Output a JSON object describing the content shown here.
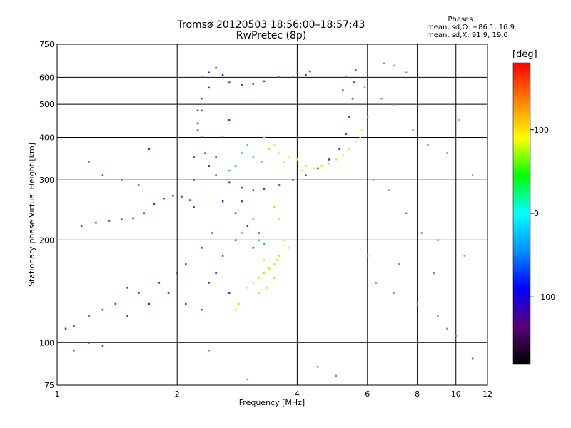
{
  "chart_data": {
    "type": "scatter",
    "title": "Tromsø 20120503 18:56:00–18:57:43",
    "subtitle": "RwPretec (8p)",
    "xlabel": "Frequency [MHz]",
    "ylabel": "Stationary phase Virtual Height [km]",
    "x_scale": "log",
    "y_scale": "log",
    "xlim": [
      1,
      12
    ],
    "ylim": [
      75,
      750
    ],
    "x_ticks": [
      1,
      2,
      4,
      6,
      8,
      10,
      12
    ],
    "y_ticks": [
      75,
      100,
      200,
      300,
      400,
      500,
      600,
      750
    ],
    "grid": true,
    "legend": {
      "header": "Phases",
      "lines": [
        "mean, sd,O: −86.1, 16.9",
        "mean, sd,X:  91.9, 19.0"
      ]
    },
    "colorbar": {
      "label": "[deg]",
      "ticks": [
        100,
        0,
        -100
      ],
      "range": [
        -180,
        180
      ],
      "colors": [
        "#000000",
        "#5a0078",
        "#0000ff",
        "#0090ff",
        "#00ffff",
        "#00ff00",
        "#ffff00",
        "#ff8000",
        "#ff0000"
      ]
    },
    "series": [
      {
        "trace": "o-mode-F-layer",
        "color": "#1e3cdc",
        "points": [
          [
            2.3,
            600
          ],
          [
            2.4,
            620
          ],
          [
            2.5,
            640
          ],
          [
            2.6,
            610
          ],
          [
            2.7,
            580
          ],
          [
            2.9,
            570
          ],
          [
            3.1,
            575
          ],
          [
            3.3,
            585
          ],
          [
            3.6,
            600
          ],
          [
            3.9,
            600
          ],
          [
            4.2,
            610
          ],
          [
            4.3,
            625
          ],
          [
            2.4,
            560
          ],
          [
            2.3,
            520
          ],
          [
            2.25,
            480
          ],
          [
            2.25,
            440
          ],
          [
            2.3,
            400
          ],
          [
            2.35,
            360
          ],
          [
            2.4,
            330
          ],
          [
            2.5,
            310
          ],
          [
            2.7,
            295
          ],
          [
            2.9,
            285
          ],
          [
            3.1,
            280
          ],
          [
            3.3,
            282
          ],
          [
            3.6,
            290
          ],
          [
            3.9,
            300
          ],
          [
            4.2,
            310
          ],
          [
            4.5,
            325
          ],
          [
            4.8,
            345
          ],
          [
            5.1,
            370
          ],
          [
            5.3,
            410
          ],
          [
            5.4,
            460
          ],
          [
            5.5,
            520
          ],
          [
            5.55,
            580
          ],
          [
            5.6,
            630
          ],
          [
            5.3,
            600
          ],
          [
            5.2,
            550
          ]
        ]
      },
      {
        "trace": "o-mode-spread-columns",
        "color": "#1e3cdc",
        "points": [
          [
            2.2,
            250
          ],
          [
            2.2,
            300
          ],
          [
            2.2,
            350
          ],
          [
            2.25,
            420
          ],
          [
            2.3,
            480
          ],
          [
            2.5,
            350
          ],
          [
            2.6,
            400
          ],
          [
            2.7,
            450
          ],
          [
            2.6,
            260
          ],
          [
            2.8,
            240
          ],
          [
            2.9,
            260
          ],
          [
            3.0,
            220
          ],
          [
            2.45,
            210
          ],
          [
            2.3,
            190
          ],
          [
            2.1,
            170
          ],
          [
            2.0,
            160
          ],
          [
            1.8,
            150
          ],
          [
            1.6,
            140
          ],
          [
            1.5,
            145
          ],
          [
            1.4,
            130
          ],
          [
            1.3,
            125
          ],
          [
            1.2,
            120
          ],
          [
            1.1,
            112
          ],
          [
            1.05,
            110
          ],
          [
            1.5,
            120
          ],
          [
            1.7,
            130
          ],
          [
            1.9,
            140
          ],
          [
            2.1,
            130
          ],
          [
            2.3,
            125
          ],
          [
            2.6,
            180
          ],
          [
            2.8,
            200
          ],
          [
            3.1,
            190
          ],
          [
            3.2,
            210
          ],
          [
            2.4,
            150
          ],
          [
            2.5,
            160
          ],
          [
            2.7,
            140
          ]
        ]
      },
      {
        "trace": "o-mode-lower-layer",
        "color": "#1e50e6",
        "points": [
          [
            1.15,
            220
          ],
          [
            1.25,
            225
          ],
          [
            1.35,
            228
          ],
          [
            1.45,
            230
          ],
          [
            1.55,
            232
          ],
          [
            1.65,
            240
          ],
          [
            1.75,
            255
          ],
          [
            1.85,
            265
          ],
          [
            1.95,
            270
          ],
          [
            2.05,
            268
          ],
          [
            2.15,
            262
          ],
          [
            1.2,
            340
          ],
          [
            1.3,
            310
          ],
          [
            1.45,
            300
          ],
          [
            1.6,
            290
          ],
          [
            1.7,
            370
          ],
          [
            1.1,
            95
          ],
          [
            1.2,
            100
          ],
          [
            1.3,
            98
          ]
        ]
      },
      {
        "trace": "x-mode-F-layer",
        "color": "#f0e628",
        "points": [
          [
            3.3,
            400
          ],
          [
            3.5,
            380
          ],
          [
            3.6,
            360
          ],
          [
            3.8,
            350
          ],
          [
            4.0,
            345
          ],
          [
            4.2,
            330
          ],
          [
            4.4,
            325
          ],
          [
            4.6,
            330
          ],
          [
            4.8,
            335
          ],
          [
            5.0,
            345
          ],
          [
            5.2,
            355
          ],
          [
            5.4,
            370
          ],
          [
            5.6,
            390
          ],
          [
            5.75,
            400
          ],
          [
            5.8,
            420
          ],
          [
            3.4,
            370
          ],
          [
            3.7,
            340
          ],
          [
            4.1,
            320
          ]
        ]
      },
      {
        "trace": "x-mode-lower",
        "color": "#f0d21e",
        "points": [
          [
            3.0,
            145
          ],
          [
            3.1,
            150
          ],
          [
            3.2,
            155
          ],
          [
            3.3,
            160
          ],
          [
            3.4,
            165
          ],
          [
            3.5,
            170
          ],
          [
            3.55,
            175
          ],
          [
            3.6,
            180
          ],
          [
            3.3,
            175
          ],
          [
            3.2,
            140
          ],
          [
            3.35,
            145
          ],
          [
            3.5,
            155
          ],
          [
            2.8,
            125
          ],
          [
            2.85,
            130
          ],
          [
            3.7,
            200
          ],
          [
            3.8,
            190
          ],
          [
            3.6,
            230
          ],
          [
            3.5,
            250
          ]
        ]
      },
      {
        "trace": "cyan-points",
        "color": "#28b4f0",
        "points": [
          [
            2.8,
            330
          ],
          [
            2.9,
            360
          ],
          [
            3.0,
            380
          ],
          [
            3.1,
            350
          ],
          [
            2.7,
            320
          ],
          [
            3.2,
            200
          ],
          [
            3.3,
            195
          ],
          [
            3.25,
            340
          ],
          [
            2.9,
            210
          ],
          [
            3.1,
            230
          ]
        ]
      },
      {
        "trace": "sparse-noise",
        "color": "#888888",
        "points": [
          [
            6.0,
            460
          ],
          [
            6.5,
            520
          ],
          [
            7.0,
            500
          ],
          [
            7.8,
            420
          ],
          [
            8.5,
            380
          ],
          [
            9.5,
            360
          ],
          [
            10.2,
            450
          ],
          [
            6.2,
            300
          ],
          [
            6.8,
            280
          ],
          [
            7.5,
            240
          ],
          [
            8.2,
            210
          ],
          [
            9.0,
            200
          ],
          [
            10.5,
            180
          ],
          [
            11.0,
            310
          ],
          [
            6.3,
            150
          ],
          [
            7.0,
            140
          ],
          [
            8.0,
            130
          ],
          [
            9.0,
            120
          ],
          [
            9.5,
            110
          ],
          [
            10.0,
            105
          ],
          [
            11.0,
            90
          ],
          [
            5.0,
            80
          ],
          [
            3.0,
            78
          ],
          [
            2.4,
            95
          ],
          [
            4.5,
            85
          ],
          [
            6.0,
            180
          ],
          [
            7.2,
            170
          ],
          [
            8.8,
            160
          ],
          [
            6.6,
            660
          ],
          [
            7.0,
            650
          ],
          [
            7.5,
            620
          ],
          [
            5.9,
            560
          ]
        ]
      }
    ]
  }
}
